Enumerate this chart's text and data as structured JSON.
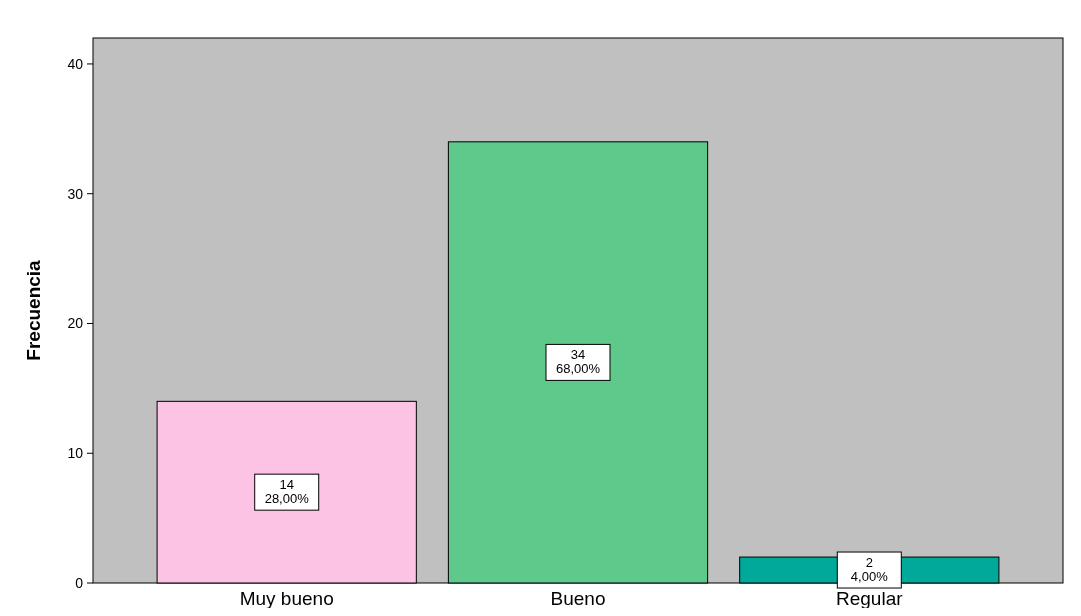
{
  "chart_data": {
    "type": "bar",
    "ylabel": "Frecuencia",
    "categories": [
      "Muy bueno",
      "Bueno",
      "Regular"
    ],
    "values": [
      14,
      34,
      2
    ],
    "colors": [
      "#fcc3e4",
      "#5ec98b",
      "#00a99a"
    ],
    "value_labels": [
      "14\n28,00%",
      "34\n68,00%",
      "2\n4,00%"
    ],
    "ylim": [
      0,
      42
    ],
    "yticks": [
      0,
      10,
      20,
      30,
      40
    ],
    "grid": false
  }
}
